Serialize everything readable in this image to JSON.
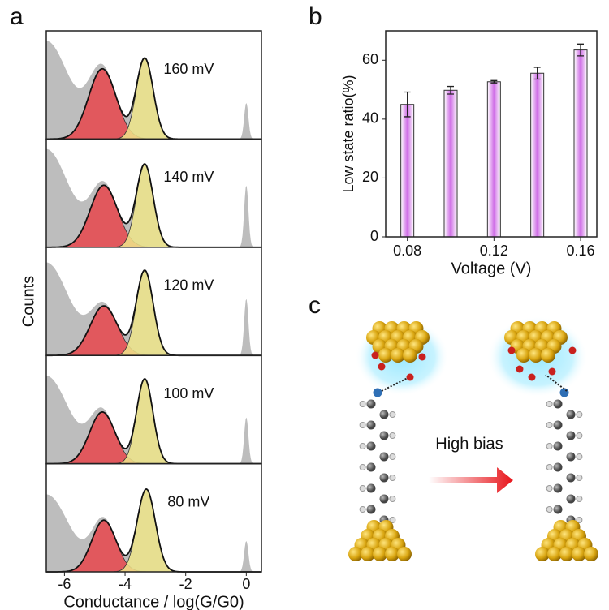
{
  "chart_data": [
    {
      "type": "histogram-fits",
      "panel_label": "a",
      "xlabel": "Conductance / log(G/G0)",
      "ylabel": "Counts",
      "xlim": [
        -6.6,
        0.5
      ],
      "xticks": [
        -6,
        -4,
        -2,
        0
      ],
      "panels": [
        {
          "label": "160 mV",
          "peaks": [
            {
              "center": -6.6,
              "sigma": 0.75,
              "height": 0.95,
              "color": "#bdbdbd"
            },
            {
              "center": -4.75,
              "sigma": 0.45,
              "height": 0.68,
              "color": "#e8474c"
            },
            {
              "center": -3.35,
              "sigma": 0.28,
              "height": 0.78,
              "color": "#eee58a"
            },
            {
              "center": 0,
              "sigma": 0.07,
              "height": 0.35,
              "color": "#bdbdbd"
            }
          ]
        },
        {
          "label": "140 mV",
          "peaks": [
            {
              "center": -6.6,
              "sigma": 0.75,
              "height": 0.95,
              "color": "#bdbdbd"
            },
            {
              "center": -4.7,
              "sigma": 0.45,
              "height": 0.6,
              "color": "#e8474c"
            },
            {
              "center": -3.35,
              "sigma": 0.28,
              "height": 0.8,
              "color": "#eee58a"
            },
            {
              "center": 0,
              "sigma": 0.07,
              "height": 0.6,
              "color": "#bdbdbd"
            }
          ]
        },
        {
          "label": "120 mV",
          "peaks": [
            {
              "center": -6.6,
              "sigma": 0.75,
              "height": 0.9,
              "color": "#bdbdbd"
            },
            {
              "center": -4.7,
              "sigma": 0.45,
              "height": 0.48,
              "color": "#e8474c"
            },
            {
              "center": -3.35,
              "sigma": 0.28,
              "height": 0.82,
              "color": "#eee58a"
            },
            {
              "center": 0,
              "sigma": 0.07,
              "height": 0.55,
              "color": "#bdbdbd"
            }
          ]
        },
        {
          "label": "100 mV",
          "peaks": [
            {
              "center": -6.6,
              "sigma": 0.75,
              "height": 0.85,
              "color": "#bdbdbd"
            },
            {
              "center": -4.75,
              "sigma": 0.42,
              "height": 0.5,
              "color": "#e8474c"
            },
            {
              "center": -3.35,
              "sigma": 0.27,
              "height": 0.82,
              "color": "#eee58a"
            },
            {
              "center": 0,
              "sigma": 0.07,
              "height": 0.45,
              "color": "#bdbdbd"
            }
          ]
        },
        {
          "label": "80 mV",
          "peaks": [
            {
              "center": -6.6,
              "sigma": 0.75,
              "height": 0.75,
              "color": "#bdbdbd"
            },
            {
              "center": -4.7,
              "sigma": 0.4,
              "height": 0.5,
              "color": "#e8474c"
            },
            {
              "center": -3.3,
              "sigma": 0.3,
              "height": 0.8,
              "color": "#eee58a"
            },
            {
              "center": 0,
              "sigma": 0.07,
              "height": 0.3,
              "color": "#bdbdbd"
            }
          ]
        }
      ]
    },
    {
      "type": "bar",
      "panel_label": "b",
      "xlabel": "Voltage (V)",
      "ylabel": "Low state ratio(%)",
      "x": [
        0.08,
        0.1,
        0.12,
        0.14,
        0.16
      ],
      "values": [
        45,
        49.8,
        52.7,
        55.6,
        63.5
      ],
      "errors": [
        4.2,
        1.3,
        0.4,
        2,
        2
      ],
      "color": "#cf6ee6",
      "xlim": [
        0.07,
        0.1675
      ],
      "xticks": [
        0.08,
        0.12,
        0.16
      ],
      "ylim": [
        0,
        70
      ],
      "yticks": [
        0,
        20,
        40,
        60
      ]
    }
  ],
  "panel_c": {
    "label": "c",
    "arrow_label": "High bias"
  }
}
